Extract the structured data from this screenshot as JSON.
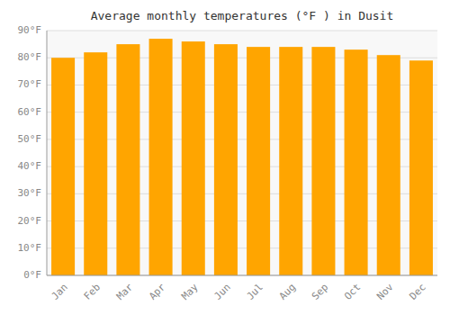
{
  "chart_data": {
    "type": "bar",
    "title": "Average monthly temperatures (°F ) in Dusit",
    "categories": [
      "Jan",
      "Feb",
      "Mar",
      "Apr",
      "May",
      "Jun",
      "Jul",
      "Aug",
      "Sep",
      "Oct",
      "Nov",
      "Dec"
    ],
    "values": [
      80,
      82,
      85,
      87,
      86,
      85,
      84,
      84,
      84,
      83,
      81,
      79
    ],
    "color": "#FFA500",
    "ylim": [
      0,
      90
    ],
    "yticks": [
      {
        "value": 0,
        "label": "0°F"
      },
      {
        "value": 10,
        "label": "10°F"
      },
      {
        "value": 20,
        "label": "20°F"
      },
      {
        "value": 30,
        "label": "30°F"
      },
      {
        "value": 40,
        "label": "40°F"
      },
      {
        "value": 50,
        "label": "50°F"
      },
      {
        "value": 60,
        "label": "60°F"
      },
      {
        "value": 70,
        "label": "70°F"
      },
      {
        "value": 80,
        "label": "80°F"
      },
      {
        "value": 90,
        "label": "90°F"
      }
    ],
    "grid": true
  }
}
